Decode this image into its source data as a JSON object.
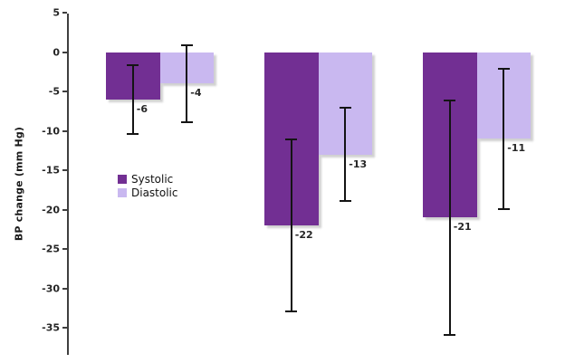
{
  "chart_data": {
    "type": "bar",
    "title": "",
    "ylabel": "BP change (mm Hg)",
    "ylim": [
      -38.5,
      5
    ],
    "yticks": [
      5,
      0,
      -5,
      -10,
      -15,
      -20,
      -25,
      -30,
      -35
    ],
    "grid": false,
    "legend_position": "middle-left",
    "categories": [
      "",
      "",
      ""
    ],
    "series": [
      {
        "name": "Systolic",
        "color": "#722f93",
        "values": [
          -6,
          -22,
          -21
        ],
        "error_high": [
          -1.5,
          -11,
          -6
        ],
        "error_low": [
          -10.5,
          -33,
          -36
        ],
        "data_labels": [
          "-6",
          "-22",
          "-21"
        ]
      },
      {
        "name": "Diastolic",
        "color": "#c9b8f0",
        "values": [
          -4,
          -13,
          -11
        ],
        "error_high": [
          1,
          -7,
          -2
        ],
        "error_low": [
          -9,
          -19,
          -20
        ],
        "data_labels": [
          "-4",
          "-13",
          "-11"
        ]
      }
    ],
    "axis_color": "#3f3f3f",
    "error_bar_color": "#141414",
    "label_color": "#262626",
    "background_color": "#ffffff"
  }
}
